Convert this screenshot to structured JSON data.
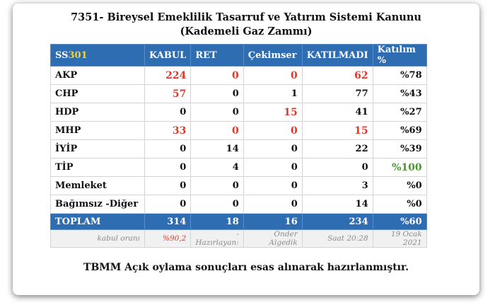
{
  "header": {
    "title": "7351- Bireysel Emeklilik Tasarruf ve Yatırım Sistemi Kanunu",
    "subtitle": "(Kademeli Gaz Zammı)"
  },
  "table": {
    "columns": [
      {
        "parts": [
          {
            "text": "SS"
          },
          {
            "text": "301",
            "color": "#f3d23a"
          }
        ]
      },
      "KABUL",
      "RET",
      "Çekimser",
      "KATILMADI",
      "Katılım %"
    ],
    "rows": [
      [
        "AKP",
        {
          "text": "224",
          "color": "#e0392b"
        },
        {
          "text": "0",
          "color": "#e0392b"
        },
        {
          "text": "0",
          "color": "#e0392b"
        },
        {
          "text": "62",
          "color": "#e0392b"
        },
        "%78"
      ],
      [
        "CHP",
        {
          "text": "57",
          "color": "#e0392b"
        },
        "0",
        "1",
        "77",
        "%43"
      ],
      [
        "HDP",
        "0",
        "0",
        {
          "text": "15",
          "color": "#e0392b"
        },
        "41",
        "%27"
      ],
      [
        "MHP",
        {
          "text": "33",
          "color": "#e0392b"
        },
        {
          "text": "0",
          "color": "#e0392b"
        },
        {
          "text": "0",
          "color": "#e0392b"
        },
        {
          "text": "15",
          "color": "#e0392b"
        },
        "%69"
      ],
      [
        "İYİP",
        "0",
        "14",
        "0",
        "22",
        "%39"
      ],
      [
        "TİP",
        "0",
        "4",
        "0",
        "0",
        {
          "text": "%100",
          "color": "#4a9a2e"
        }
      ],
      [
        "Memleket",
        "0",
        "0",
        "0",
        "3",
        "%0"
      ],
      [
        "Bağımsız -Diğer",
        "0",
        "0",
        "0",
        "14",
        "%0"
      ]
    ],
    "total": [
      "TOPLAM",
      "314",
      "18",
      "16",
      "234",
      "%60"
    ],
    "footer": [
      "kabul oranı",
      {
        "text": "%90,2",
        "color": "#e0392b"
      },
      "-Hazırlayan:",
      "Önder Algedik",
      "Saat 20:28",
      "19 Ocak 2021"
    ]
  },
  "caption": "TBMM Açık oylama sonuçları esas alınarak hazırlanmıştır."
}
